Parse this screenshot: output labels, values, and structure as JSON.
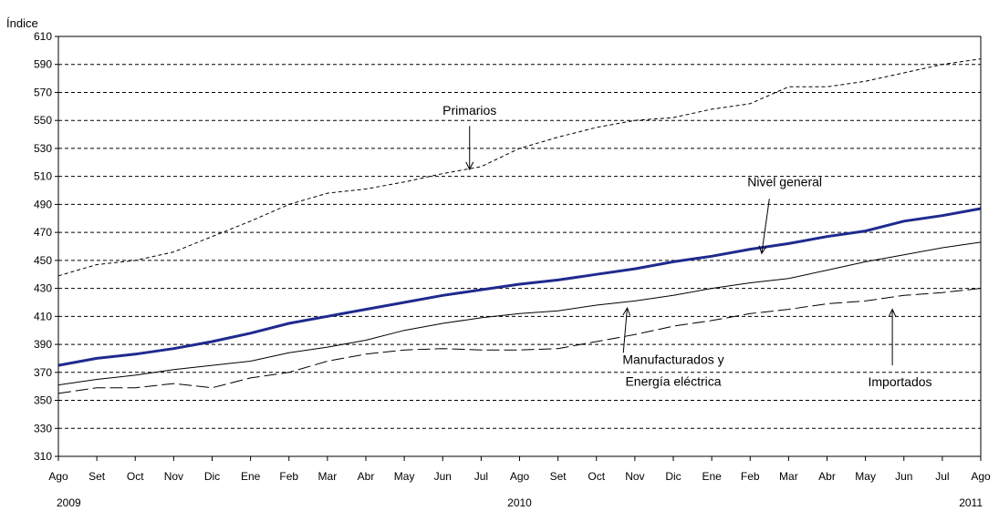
{
  "chart_data": {
    "type": "line",
    "ylabel": "Índice",
    "ylim": [
      310,
      610
    ],
    "yticks": [
      310,
      330,
      350,
      370,
      390,
      410,
      430,
      450,
      470,
      490,
      510,
      530,
      550,
      570,
      590,
      610
    ],
    "grid": "horizontal-dashed",
    "categories": [
      "Ago",
      "Set",
      "Oct",
      "Nov",
      "Dic",
      "Ene",
      "Feb",
      "Mar",
      "Abr",
      "May",
      "Jun",
      "Jul",
      "Ago",
      "Set",
      "Oct",
      "Nov",
      "Dic",
      "Ene",
      "Feb",
      "Mar",
      "Abr",
      "May",
      "Jun",
      "Jul",
      "Ago"
    ],
    "years": [
      {
        "label": "2009",
        "index": 0
      },
      {
        "label": "2010",
        "index": 12
      },
      {
        "label": "2011",
        "index": 24
      }
    ],
    "series": [
      {
        "name": "Primarios",
        "style": "dashed",
        "color": "#000000",
        "values": [
          439,
          447,
          450,
          456,
          467,
          478,
          490,
          498,
          501,
          506,
          512,
          517,
          530,
          538,
          545,
          550,
          552,
          558,
          562,
          574,
          574,
          578,
          584,
          590,
          594
        ]
      },
      {
        "name": "Nivel general",
        "style": "bold",
        "color": "#1f2a8f",
        "values": [
          375,
          380,
          383,
          387,
          392,
          398,
          405,
          410,
          415,
          420,
          425,
          429,
          433,
          436,
          440,
          444,
          449,
          453,
          458,
          462,
          467,
          471,
          478,
          482,
          487
        ]
      },
      {
        "name": "Manufacturados y Energía eléctrica",
        "style": "solid",
        "color": "#000000",
        "values": [
          361,
          365,
          368,
          372,
          375,
          378,
          384,
          388,
          393,
          400,
          405,
          409,
          412,
          414,
          418,
          421,
          425,
          430,
          434,
          437,
          443,
          449,
          454,
          459,
          463
        ]
      },
      {
        "name": "Importados",
        "style": "longdash",
        "color": "#000000",
        "values": [
          355,
          359,
          359,
          362,
          359,
          366,
          370,
          378,
          383,
          386,
          387,
          386,
          386,
          387,
          392,
          397,
          403,
          407,
          412,
          415,
          419,
          421,
          425,
          427,
          430
        ]
      }
    ],
    "annotations": [
      {
        "lines": [
          "Primarios"
        ],
        "series": "Primarios",
        "text_x": 10.7,
        "text_y": 554,
        "arrow_from": [
          10.7,
          546
        ],
        "arrow_to": [
          10.7,
          515
        ]
      },
      {
        "lines": [
          "Nivel general"
        ],
        "series": "Nivel general",
        "text_x": 18.9,
        "text_y": 503,
        "arrow_from": [
          18.5,
          494
        ],
        "arrow_to": [
          18.3,
          455
        ]
      },
      {
        "lines": [
          "Manufacturados y",
          "Energía eléctrica"
        ],
        "series": "Manufacturados y Energía eléctrica",
        "text_x": 16.0,
        "text_y": 376,
        "arrow_from": [
          14.7,
          384
        ],
        "arrow_to": [
          14.8,
          416
        ]
      },
      {
        "lines": [
          "Importados"
        ],
        "series": "Importados",
        "text_x": 21.9,
        "text_y": 360,
        "arrow_from": [
          21.7,
          375
        ],
        "arrow_to": [
          21.7,
          415
        ]
      }
    ]
  }
}
